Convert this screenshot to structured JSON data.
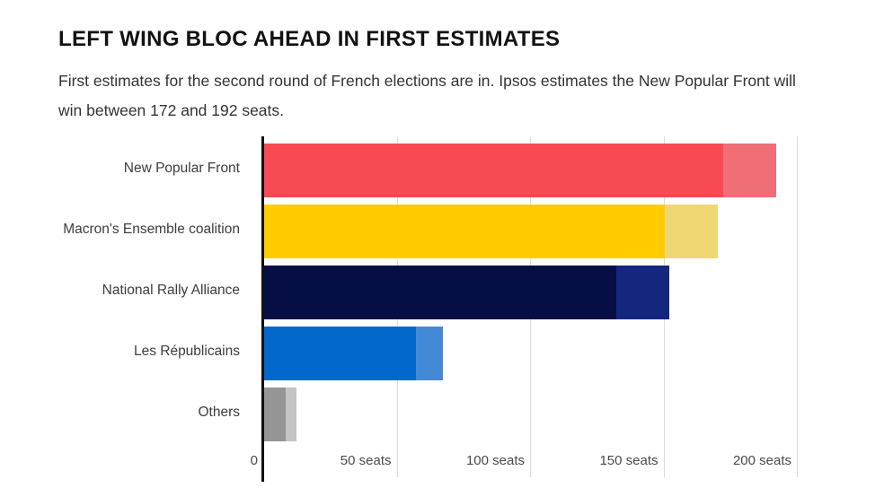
{
  "header": {
    "title": "LEFT WING BLOC AHEAD IN FIRST ESTIMATES",
    "subtitle": "First estimates for the second round of French elections are in. Ipsos estimates the New Popular Front will win between 172 and 192 seats."
  },
  "chart_data": {
    "type": "bar",
    "orientation": "horizontal",
    "title": "LEFT WING BLOC AHEAD IN FIRST ESTIMATES",
    "xlabel": "seats",
    "xlim": [
      0,
      200
    ],
    "grid": true,
    "legend": "none",
    "categories": [
      "New Popular Front",
      "Macron's Ensemble coalition",
      "National Rally Alliance",
      "Les Républicains",
      "Others"
    ],
    "series": [
      {
        "name": "estimate_low",
        "values": [
          172,
          150,
          132,
          57,
          8
        ]
      },
      {
        "name": "estimate_high",
        "values": [
          192,
          170,
          152,
          67,
          12
        ]
      }
    ],
    "bar_colors_main": [
      "#F84A52",
      "#FFCC00",
      "#050F45",
      "#0268CC",
      "#959595"
    ],
    "bar_colors_range": [
      "#F06E76",
      "#EFD773",
      "#14277E",
      "#4489D6",
      "#C4C4C4"
    ],
    "x_ticks": [
      {
        "value": 0,
        "label": "0"
      },
      {
        "value": 50,
        "label": "50 seats"
      },
      {
        "value": 100,
        "label": "100 seats"
      },
      {
        "value": 150,
        "label": "150 seats"
      },
      {
        "value": 200,
        "label": "200 seats"
      }
    ],
    "colors": {
      "axis_line": "#111111",
      "gridline": "#dcdcdc",
      "title_text": "#121212",
      "subtitle_text": "#333333",
      "tick_text": "#4a4a4a",
      "category_text": "#3d3d3d"
    }
  }
}
